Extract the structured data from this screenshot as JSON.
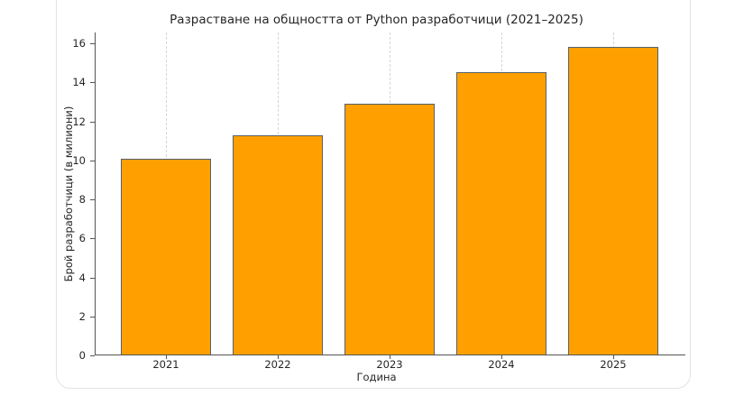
{
  "chart_data": {
    "type": "bar",
    "title": "Разрастване на общността от Python разработчици (2021–2025)",
    "xlabel": "Година",
    "ylabel": "Брой разработчици (в милиони)",
    "categories": [
      "2021",
      "2022",
      "2023",
      "2024",
      "2025"
    ],
    "values": [
      10.1,
      11.3,
      12.9,
      14.5,
      15.8
    ],
    "ylim": [
      0,
      16.6
    ],
    "yticks": [
      "0",
      "2",
      "4",
      "6",
      "8",
      "10",
      "12",
      "14",
      "16"
    ],
    "grid": "x-dashed",
    "legend": null,
    "bar_color": "#ffa000",
    "bar_edge_color": "#55626e"
  }
}
